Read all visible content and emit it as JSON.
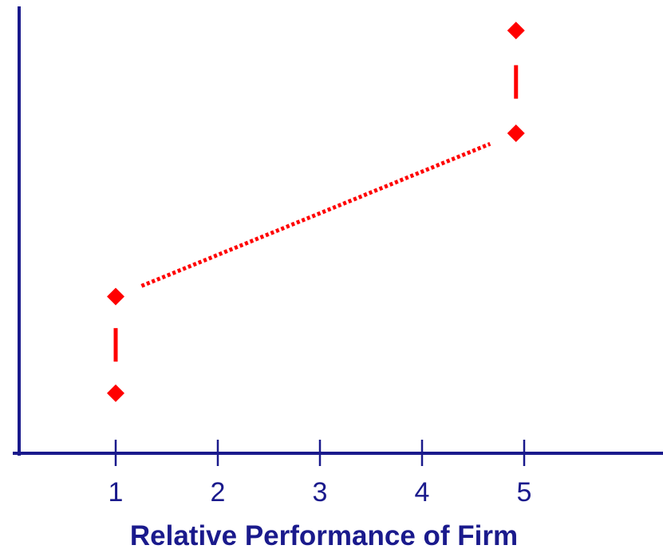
{
  "chart_data": {
    "type": "scatter",
    "xlabel": "Relative Performance of Firm",
    "ylabel": "",
    "x_ticks": [
      1,
      2,
      3,
      4,
      5
    ],
    "xlim": [
      0.0,
      6.4
    ],
    "ylim": [
      0,
      10
    ],
    "grid": false,
    "points": [
      {
        "x": 1,
        "y": 1.45
      },
      {
        "x": 1,
        "y": 3.85
      },
      {
        "x": 4.92,
        "y": 7.9
      },
      {
        "x": 4.92,
        "y": 10.45
      }
    ],
    "connectors": [
      {
        "from": 0,
        "to": 1,
        "style": "dash"
      },
      {
        "from": 1,
        "to": 2,
        "style": "dotted"
      },
      {
        "from": 2,
        "to": 3,
        "style": "dash"
      }
    ],
    "colors": {
      "axis": "#1a1a8c",
      "marker": "#ff0000",
      "text": "#1a1a8c"
    }
  }
}
